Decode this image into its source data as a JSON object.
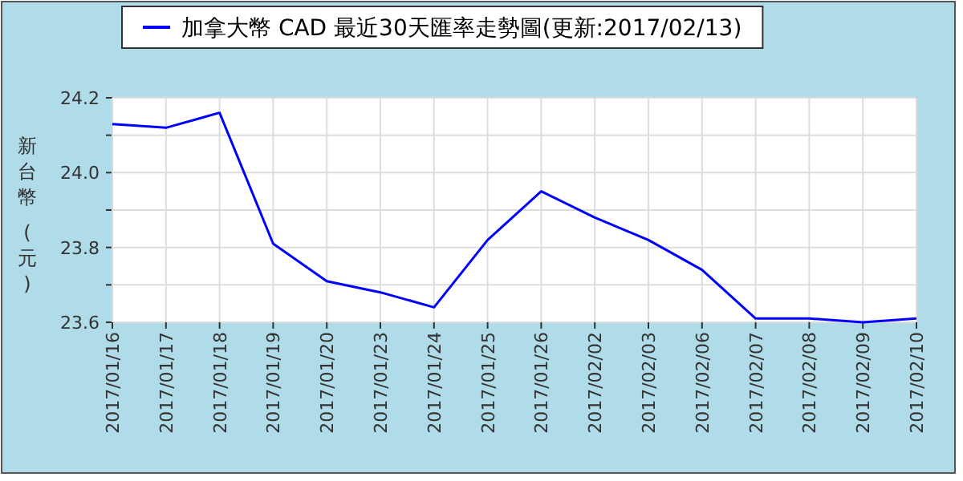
{
  "chart_data": {
    "type": "line",
    "ylabel": "新台幣 (元)",
    "categories": [
      "2017/01/16",
      "2017/01/17",
      "2017/01/18",
      "2017/01/19",
      "2017/01/20",
      "2017/01/23",
      "2017/01/24",
      "2017/01/25",
      "2017/01/26",
      "2017/02/02",
      "2017/02/03",
      "2017/02/06",
      "2017/02/07",
      "2017/02/08",
      "2017/02/09",
      "2017/02/10"
    ],
    "series": [
      {
        "name": "加拿大幣 CAD 最近30天匯率走勢圖(更新:2017/02/13)",
        "color": "#0000ff",
        "values": [
          24.13,
          24.12,
          24.16,
          23.81,
          23.71,
          23.68,
          23.64,
          23.82,
          23.95,
          23.88,
          23.82,
          23.74,
          23.61,
          23.61,
          23.6,
          23.61
        ]
      }
    ],
    "ylim": [
      23.6,
      24.2
    ],
    "yticks": [
      {
        "value": 23.6,
        "label": "23.6"
      },
      {
        "value": 23.7,
        "label": null
      },
      {
        "value": 23.8,
        "label": "23.8"
      },
      {
        "value": 23.9,
        "label": null
      },
      {
        "value": 24.0,
        "label": "24.0"
      },
      {
        "value": 24.1,
        "label": null
      },
      {
        "value": 24.2,
        "label": "24.2"
      }
    ],
    "grid": true,
    "legend": "top",
    "marker": "none",
    "line_style": "solid"
  }
}
